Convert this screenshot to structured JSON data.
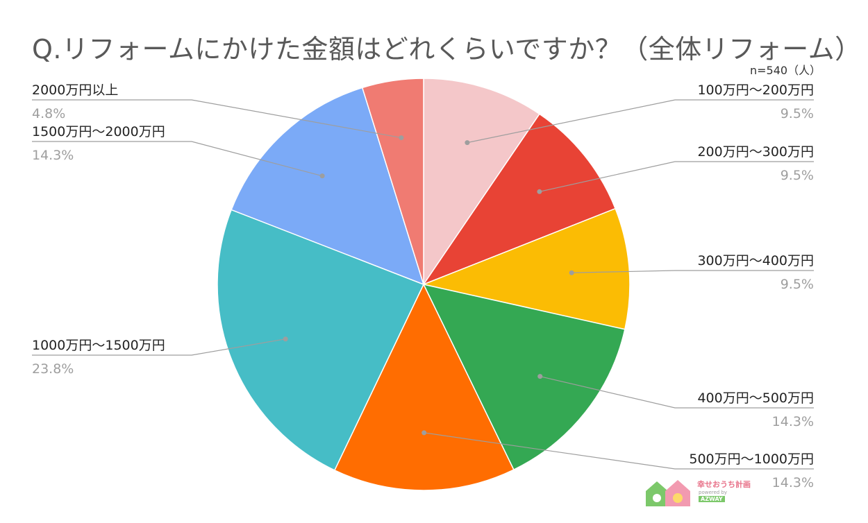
{
  "chart_data": {
    "type": "pie",
    "title": "Q.リフォームにかけた金額はどれくらいですか？（全体リフォーム）",
    "subtitle": "n=540（人）",
    "start": "12 o'clock, clockwise",
    "slices": [
      {
        "label": "100万円〜200万円",
        "value": 9.5,
        "pct_label": "9.5%",
        "color": "#f4c7c9"
      },
      {
        "label": "200万円〜300万円",
        "value": 9.5,
        "pct_label": "9.5%",
        "color": "#e84335"
      },
      {
        "label": "300万円〜400万円",
        "value": 9.5,
        "pct_label": "9.5%",
        "color": "#fbbc04"
      },
      {
        "label": "400万円〜500万円",
        "value": 14.3,
        "pct_label": "14.3%",
        "color": "#34a853"
      },
      {
        "label": "500万円〜1000万円",
        "value": 14.3,
        "pct_label": "14.3%",
        "color": "#ff6d01"
      },
      {
        "label": "1000万円〜1500万円",
        "value": 23.8,
        "pct_label": "23.8%",
        "color": "#46bdc6"
      },
      {
        "label": "1500万円〜2000万円",
        "value": 14.3,
        "pct_label": "14.3%",
        "color": "#7baaf7"
      },
      {
        "label": "2000万円以上",
        "value": 4.8,
        "pct_label": "4.8%",
        "color": "#f07b72"
      }
    ]
  },
  "logo": {
    "line1": "幸せおうち計画",
    "line2": "powered by",
    "line3": "AZWAY"
  }
}
